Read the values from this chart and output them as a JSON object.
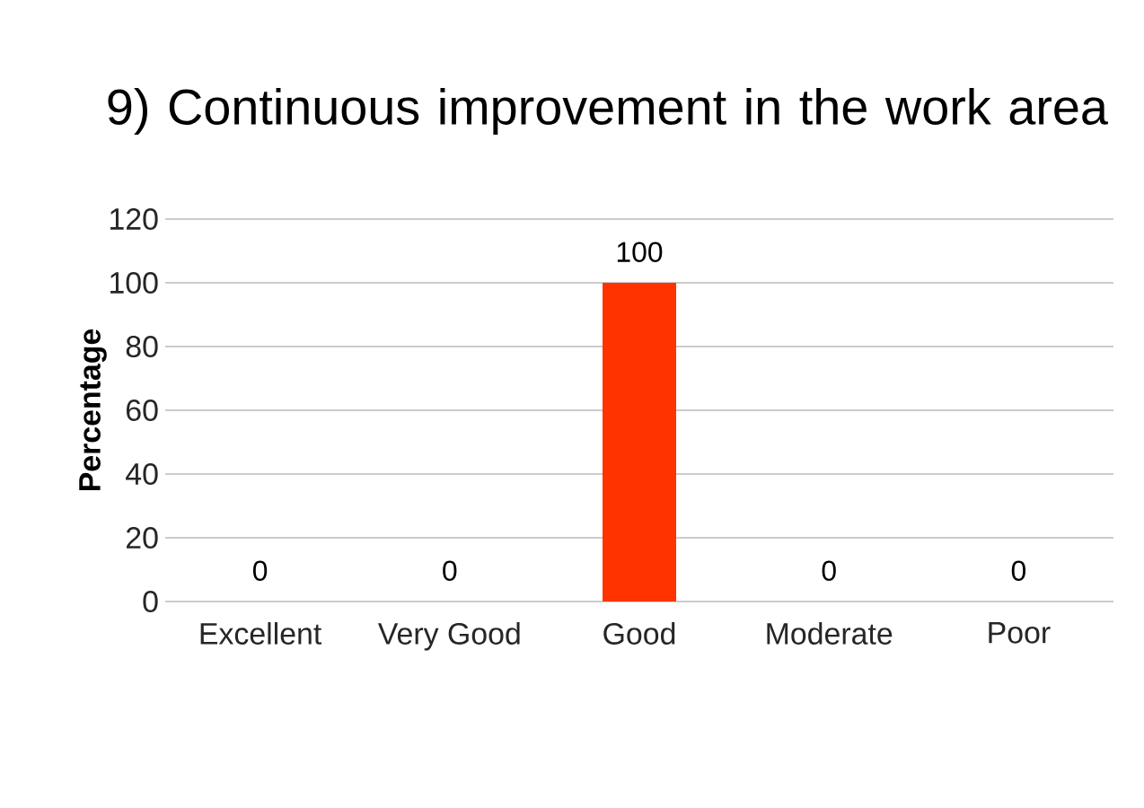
{
  "chart_data": {
    "type": "bar",
    "title": "9) Continuous improvement in the work area",
    "ylabel": "Percentage",
    "categories": [
      "Excellent",
      "Very Good",
      "Good",
      "Moderate",
      "Poor"
    ],
    "values": [
      0,
      0,
      100,
      0,
      0
    ],
    "color": "#ff3300",
    "ylim": [
      0,
      120
    ],
    "yticks": [
      0,
      20,
      40,
      60,
      80,
      100,
      120
    ],
    "grid": "y",
    "data_labels": true
  }
}
